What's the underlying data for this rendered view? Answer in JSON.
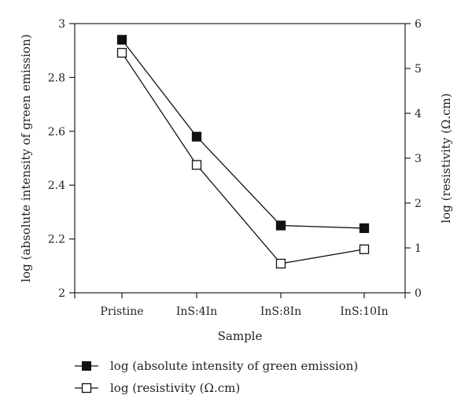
{
  "chart_data": {
    "type": "line",
    "xlabel": "Sample",
    "ylabel_left": "log (absolute intensity of green emission)",
    "ylabel_right": "log (resistivity (Ω.cm)",
    "categories": [
      "Pristine",
      "InS:4In",
      "InS:8In",
      "InS:10In"
    ],
    "ylim_left": [
      2,
      3
    ],
    "yticks_left": [
      "2",
      "2.2",
      "2.4",
      "2.6",
      "2.8",
      "3"
    ],
    "ylim_right": [
      0,
      6
    ],
    "yticks_right": [
      "0",
      "1",
      "2",
      "3",
      "4",
      "5",
      "6"
    ],
    "grid": false,
    "legend_position": "bottom",
    "series": [
      {
        "name": "log (absolute intensity of green emission)",
        "axis": "left",
        "marker": "filled-square",
        "color": "#111111",
        "values": [
          2.94,
          2.58,
          2.25,
          2.24
        ]
      },
      {
        "name": "log (resistivity (Ω.cm)",
        "axis": "right",
        "marker": "open-square",
        "color": "#111111",
        "values": [
          5.35,
          2.85,
          0.65,
          0.97
        ]
      }
    ]
  }
}
